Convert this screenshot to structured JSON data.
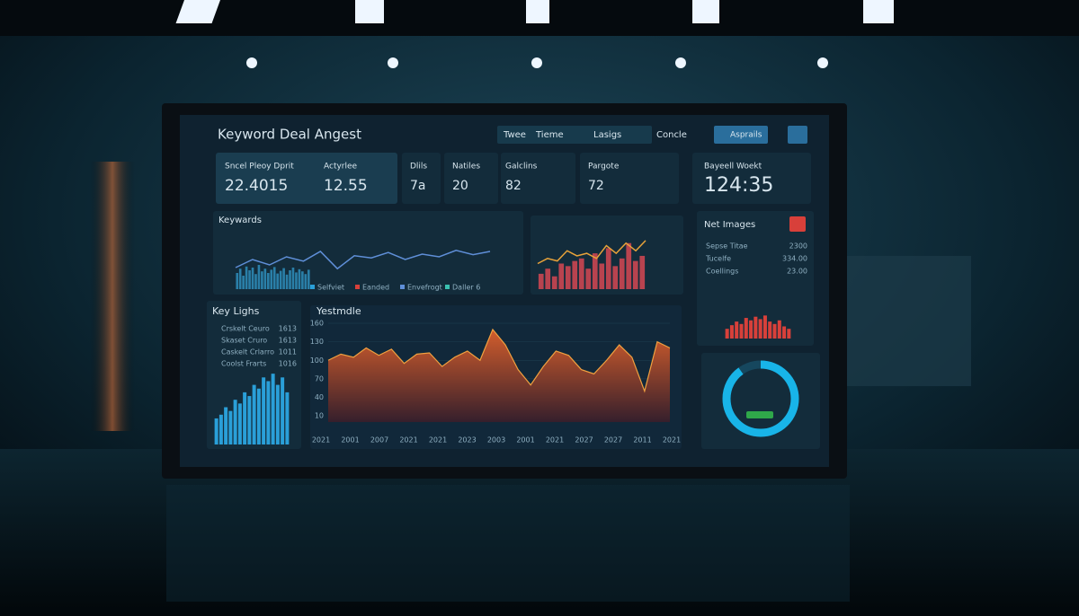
{
  "header": {
    "title": "Keyword Deal Angest",
    "controls": [
      "Twee",
      "Tieme",
      "Lasigs",
      "Concle"
    ],
    "button": "Asprails"
  },
  "kpis": [
    {
      "label": "Sncel Pleoy Dprit",
      "value": "22.4015"
    },
    {
      "label": "Actyrlee",
      "value": "12.55"
    },
    {
      "label": "Dlils",
      "value": "7a"
    },
    {
      "label": "Natiles",
      "value": "20"
    },
    {
      "label": "Galclins",
      "value": "82"
    },
    {
      "label": "Pargote",
      "value": "72"
    },
    {
      "label": "Bayeell Woekt",
      "value": "124:35"
    }
  ],
  "keywords": {
    "title": "Keywards",
    "legend": [
      "Selfviet",
      "Eanded",
      "Envefrogt",
      "Daller 6"
    ],
    "ylim": [
      0,
      100
    ],
    "line_color": "#5f8fd8",
    "bar_color": "#2a7fa8",
    "line": [
      40,
      55,
      45,
      60,
      52,
      70,
      38,
      62,
      58,
      68,
      55,
      65,
      60,
      72,
      64,
      70
    ],
    "bars": [
      30,
      38,
      25,
      42,
      35,
      40,
      28,
      45,
      33,
      38,
      30,
      36,
      41,
      29,
      34,
      39,
      27,
      35,
      40,
      31,
      37,
      33,
      28,
      36
    ]
  },
  "trends": {
    "ylim": [
      0,
      100
    ],
    "line_color": "#e8a33a",
    "bar_color": "#b8434f",
    "line": [
      50,
      60,
      55,
      75,
      65,
      70,
      60,
      85,
      70,
      90,
      75,
      95
    ],
    "bars": [
      30,
      40,
      25,
      50,
      45,
      55,
      60,
      40,
      70,
      50,
      80,
      45,
      60,
      90,
      55,
      65
    ]
  },
  "net_images": {
    "title": "Net Images",
    "rows": [
      [
        "Sepse Titae",
        "2300"
      ],
      [
        "Tucelfe",
        "334.00"
      ],
      [
        "Coellings",
        "23.00"
      ]
    ],
    "ylim": [
      0,
      100
    ],
    "color": "#d8403a",
    "bars": [
      40,
      55,
      70,
      60,
      85,
      75,
      90,
      80,
      95,
      70,
      60,
      75,
      50,
      40
    ]
  },
  "key_lights": {
    "title": "Key Lighs",
    "rows": [
      [
        "Crskelt Ceuro",
        "1613"
      ],
      [
        "Skaset Cruro",
        "1613"
      ],
      [
        "Caskelt Crlarro",
        "1011"
      ],
      [
        "Coolst Frarts",
        "1016"
      ]
    ],
    "ylim": [
      0,
      100
    ],
    "color": "#2a9fd8",
    "bars": [
      35,
      40,
      50,
      45,
      60,
      55,
      70,
      65,
      80,
      75,
      90,
      85,
      95,
      80,
      90,
      70
    ]
  },
  "yestmdle": {
    "title": "Yestmdle",
    "ylim": [
      0,
      160
    ],
    "yticks": [
      10,
      40,
      70,
      100,
      130,
      160
    ],
    "categories": [
      "2021",
      "2001",
      "2007",
      "2021",
      "2021",
      "2023",
      "2003",
      "2001",
      "2021",
      "2027",
      "2027",
      "2011",
      "2021"
    ],
    "color": "#e8632a",
    "values": [
      100,
      110,
      105,
      120,
      108,
      118,
      95,
      110,
      112,
      90,
      105,
      115,
      100,
      150,
      125,
      85,
      60,
      90,
      115,
      108,
      85,
      78,
      100,
      125,
      105,
      50,
      130,
      120
    ]
  },
  "donut": {
    "value": 90,
    "max": 100,
    "color": "#18b4e8"
  }
}
